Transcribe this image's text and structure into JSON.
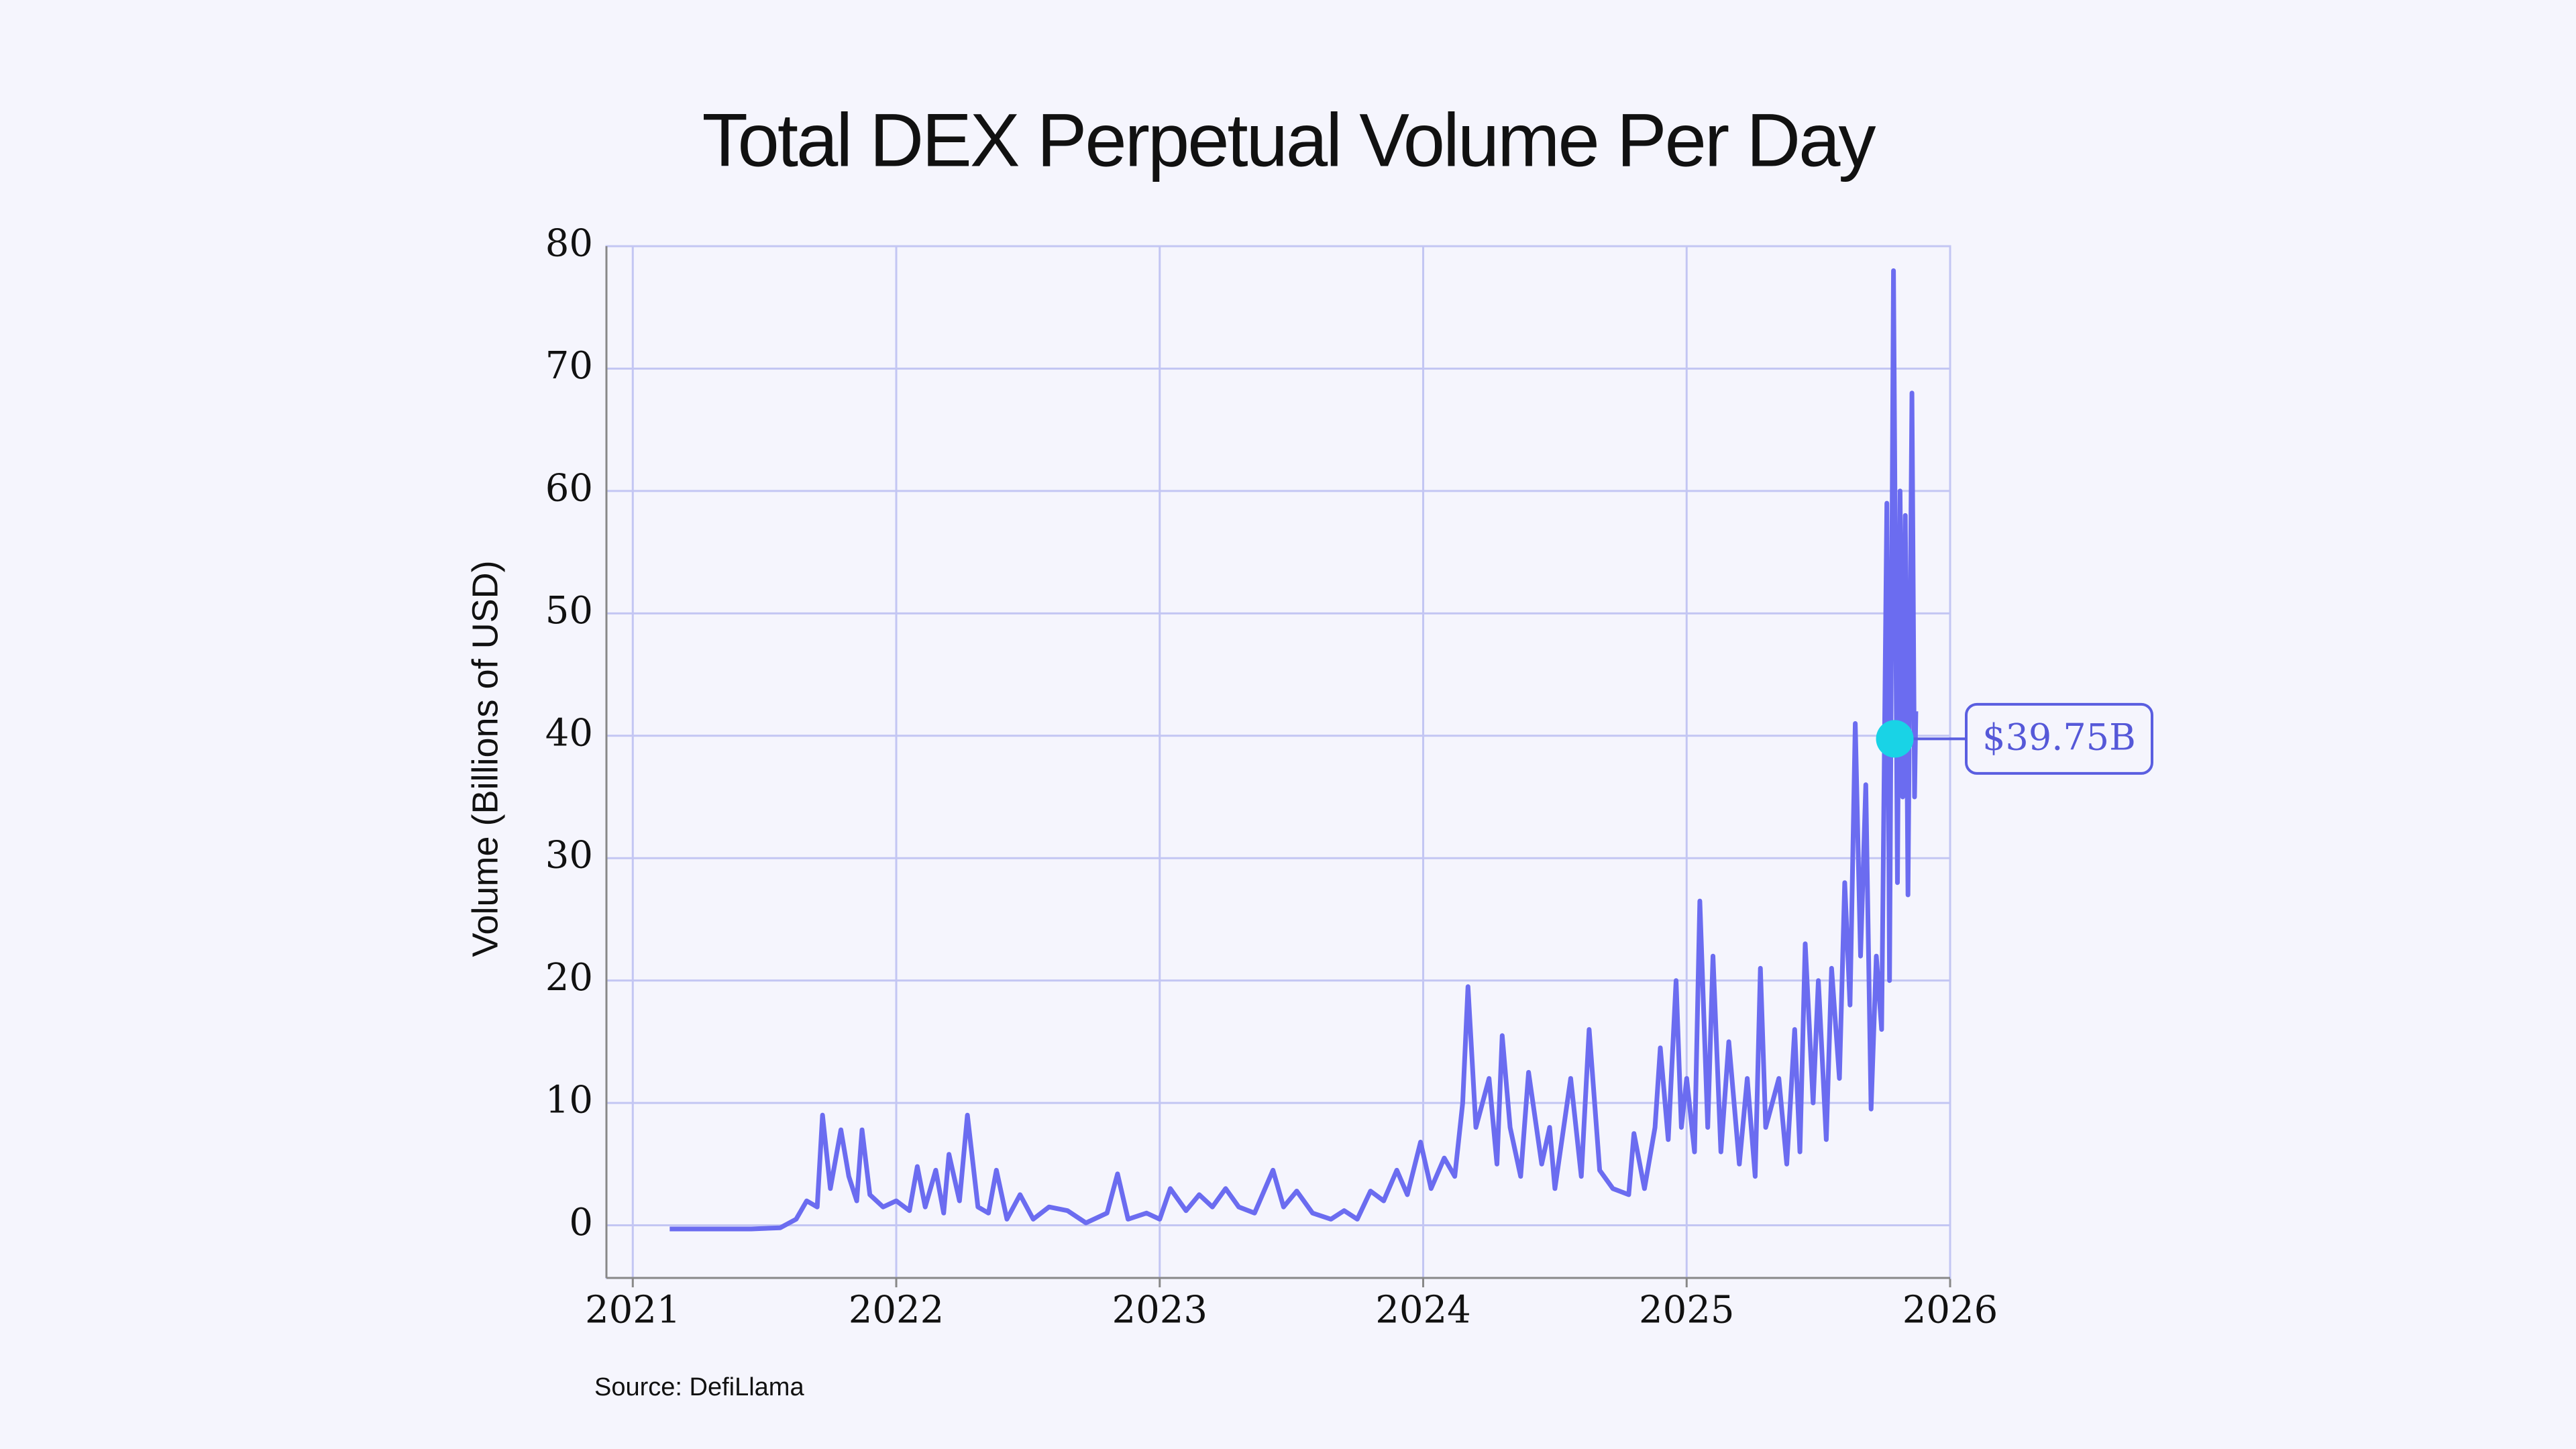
{
  "chart_data": {
    "type": "line",
    "title": "Total DEX Perpetual Volume Per Day",
    "ylabel": "Volume (Billions of USD)",
    "source": "Source: DefiLlama",
    "xlim": [
      2020.9,
      2026
    ],
    "xticks": [
      2021,
      2022,
      2023,
      2024,
      2025,
      2026
    ],
    "ylim": [
      -4.3,
      80
    ],
    "yticks": [
      0,
      10,
      20,
      30,
      40,
      50,
      60,
      70,
      80
    ],
    "grid": true,
    "series": [
      {
        "color": "#6b6cf0",
        "x": [
          2021.14,
          2021.3,
          2021.45,
          2021.56,
          2021.62,
          2021.66,
          2021.7,
          2021.72,
          2021.75,
          2021.79,
          2021.82,
          2021.85,
          2021.87,
          2021.9,
          2021.95,
          2022.0,
          2022.05,
          2022.08,
          2022.11,
          2022.15,
          2022.18,
          2022.2,
          2022.24,
          2022.27,
          2022.31,
          2022.35,
          2022.38,
          2022.42,
          2022.47,
          2022.52,
          2022.58,
          2022.65,
          2022.72,
          2022.8,
          2022.84,
          2022.88,
          2022.95,
          2023.0,
          2023.04,
          2023.1,
          2023.15,
          2023.2,
          2023.25,
          2023.3,
          2023.36,
          2023.43,
          2023.47,
          2023.52,
          2023.58,
          2023.65,
          2023.7,
          2023.75,
          2023.8,
          2023.85,
          2023.9,
          2023.94,
          2023.99,
          2024.03,
          2024.08,
          2024.12,
          2024.15,
          2024.17,
          2024.2,
          2024.25,
          2024.28,
          2024.3,
          2024.33,
          2024.37,
          2024.4,
          2024.45,
          2024.48,
          2024.5,
          2024.56,
          2024.6,
          2024.63,
          2024.67,
          2024.72,
          2024.78,
          2024.8,
          2024.84,
          2024.88,
          2024.9,
          2024.93,
          2024.96,
          2024.98,
          2025.0,
          2025.03,
          2025.05,
          2025.08,
          2025.1,
          2025.13,
          2025.16,
          2025.2,
          2025.23,
          2025.26,
          2025.28,
          2025.3,
          2025.35,
          2025.38,
          2025.41,
          2025.43,
          2025.45,
          2025.48,
          2025.5,
          2025.53,
          2025.55,
          2025.58,
          2025.6,
          2025.62,
          2025.64,
          2025.66,
          2025.68,
          2025.7,
          2025.72,
          2025.74,
          2025.76,
          2025.77,
          2025.785,
          2025.8,
          2025.81,
          2025.82,
          2025.83,
          2025.84,
          2025.855,
          2025.865,
          2025.87
        ],
        "values": [
          -0.3,
          -0.3,
          -0.3,
          -0.2,
          0.5,
          2.0,
          1.5,
          9.0,
          3,
          7.8,
          4,
          2,
          7.8,
          2.5,
          1.5,
          2,
          1.2,
          4.8,
          1.5,
          4.5,
          1,
          5.8,
          2,
          9.0,
          1.5,
          1,
          4.5,
          0.5,
          2.5,
          0.5,
          1.5,
          1.2,
          0.2,
          1.0,
          4.2,
          0.5,
          1,
          0.5,
          3,
          1.2,
          2.5,
          1.5,
          3,
          1.5,
          1.0,
          4.5,
          1.5,
          2.8,
          1,
          0.5,
          1.2,
          0.5,
          2.8,
          2,
          4.5,
          2.5,
          6.8,
          3,
          5.5,
          4,
          10,
          19.5,
          8,
          12,
          5,
          15.5,
          8,
          4,
          12.5,
          5,
          8,
          3,
          12,
          4,
          16,
          4.5,
          3,
          2.5,
          7.5,
          3,
          8,
          14.5,
          7,
          20,
          8,
          12,
          6,
          26.5,
          8,
          22,
          6,
          15,
          5,
          12,
          4,
          21,
          8,
          12,
          5,
          16,
          6,
          23,
          10,
          20,
          7,
          21,
          12,
          28,
          18,
          41,
          22,
          36,
          9.5,
          22,
          16,
          59,
          20,
          78,
          28,
          60,
          35,
          58,
          27,
          68,
          35,
          42
        ]
      }
    ],
    "annotation": {
      "x": 2025.79,
      "y": 39.75,
      "label": "$39.75B"
    }
  }
}
